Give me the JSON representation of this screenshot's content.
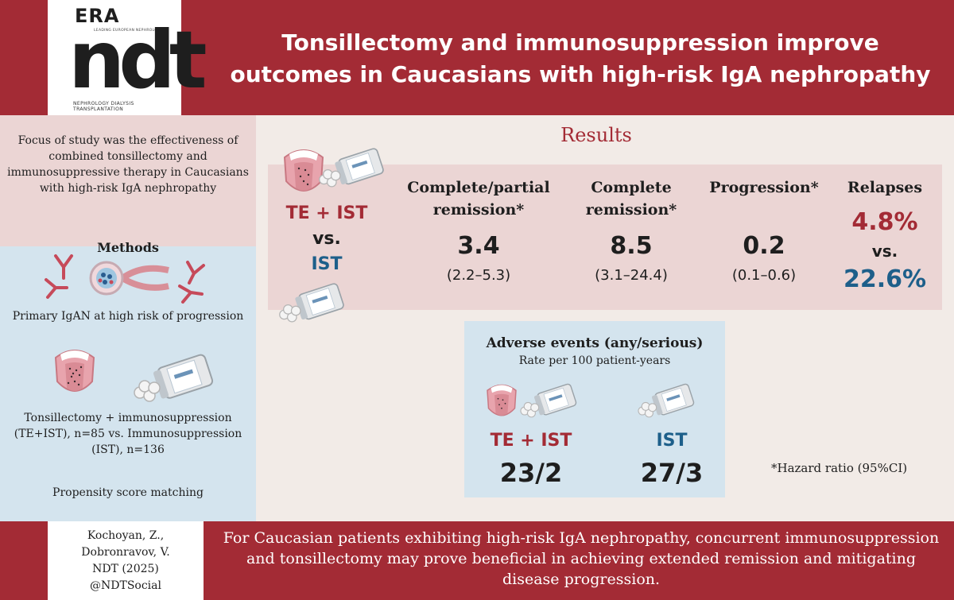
{
  "header": {
    "logo_era": "ERA",
    "logo_era_sub": "LEADING EUROPEAN NEPHROLOGY",
    "logo_ndt": "ndt",
    "logo_ndt_sub": "NEPHROLOGY DIALYSIS TRANSPLANTATION",
    "title_line1": "Tonsillectomy and immunosuppression improve",
    "title_line2": "outcomes in Caucasians with high-risk IgA nephropathy"
  },
  "focus": {
    "text": "Focus of study was the effectiveness of combined tonsillectomy and immunosuppressive therapy in Caucasians with high-risk IgA nephropathy"
  },
  "methods": {
    "title": "Methods",
    "population": "Primary IgAN at high risk of progression",
    "comparison": "Tonsillectomy + immunosuppression (TE+IST), n=85 vs. Immunosuppression (IST), n=136",
    "matching": "Propensity score matching"
  },
  "results": {
    "title": "Results",
    "arm_a": "TE + IST",
    "vs": "vs.",
    "arm_b": "IST",
    "columns": [
      {
        "head1": "Complete/partial",
        "head2": "remission*",
        "value": "3.4",
        "ci": "(2.2–5.3)"
      },
      {
        "head1": "Complete",
        "head2": "remission*",
        "value": "8.5",
        "ci": "(3.1–24.4)"
      },
      {
        "head1": "Progression*",
        "head2": "",
        "value": "0.2",
        "ci": "(0.1–0.6)"
      }
    ],
    "relapses": {
      "head": "Relapses",
      "value_a": "4.8%",
      "vs": "vs.",
      "value_b": "22.6%"
    }
  },
  "adverse": {
    "title": "Adverse events (any/serious)",
    "subtitle": "Rate per 100 patient-years",
    "arm_a": "TE + IST",
    "arm_b": "IST",
    "value_a": "23/2",
    "value_b": "27/3"
  },
  "footnote": "*Hazard ratio (95%CI)",
  "citation": {
    "line1": "Kochoyan, Z.,",
    "line2": "Dobronravov, V.",
    "line3": "NDT (2025)",
    "line4": "@NDTSocial"
  },
  "conclusion": "For Caucasian patients exhibiting high-risk IgA nephropathy, concurrent immunosuppression and tonsillectomy may prove beneficial in achieving extended remission and mitigating disease progression.",
  "colors": {
    "brand_red": "#a32b35",
    "ist_blue": "#1d5f8a",
    "pink_panel": "#ebd5d4",
    "blue_panel": "#d4e4ee",
    "background": "#f2ebe7"
  },
  "icons": [
    "ndt-logo",
    "throat-icon",
    "pill-bottle-icon",
    "antibody-icon",
    "glomerulus-icon"
  ]
}
